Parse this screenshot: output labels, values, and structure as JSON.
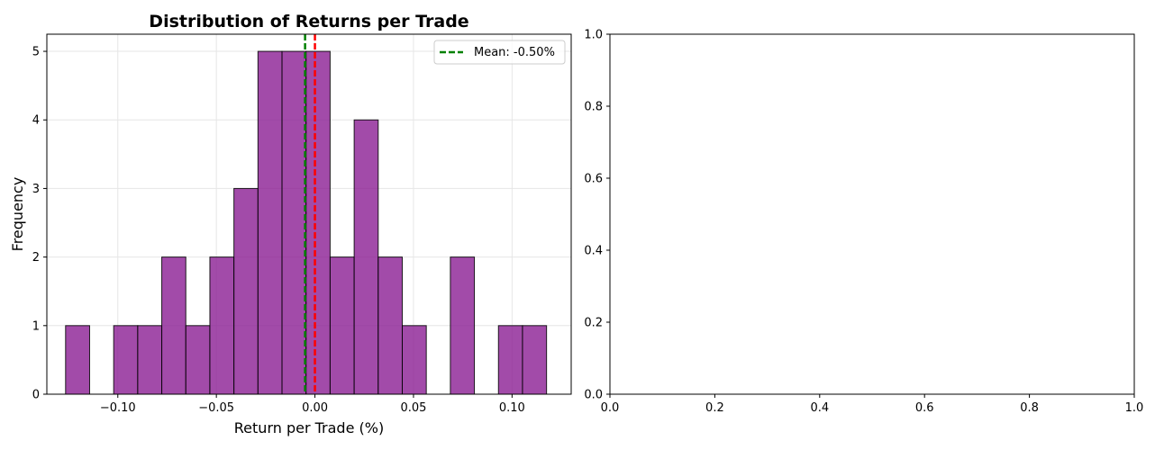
{
  "chart_data": [
    {
      "type": "bar",
      "title": "Distribution of Returns per Trade",
      "xlabel": "Return per Trade (%)",
      "ylabel": "Frequency",
      "xlim": [
        -0.136,
        0.13
      ],
      "ylim": [
        0,
        5.25
      ],
      "xticks": [
        -0.1,
        -0.05,
        0.0,
        0.05,
        0.1
      ],
      "xtick_labels": [
        "−0.10",
        "−0.05",
        "0.00",
        "0.05",
        "0.10"
      ],
      "yticks": [
        0,
        1,
        2,
        3,
        4,
        5
      ],
      "ytick_labels": [
        "0",
        "1",
        "2",
        "3",
        "4",
        "5"
      ],
      "grid": true,
      "bar_color": "#8b1e94",
      "bins": [
        {
          "x0": -0.1265,
          "x1": -0.1143,
          "count": 1
        },
        {
          "x0": -0.1143,
          "x1": -0.1021,
          "count": 0
        },
        {
          "x0": -0.1021,
          "x1": -0.0899,
          "count": 1
        },
        {
          "x0": -0.0899,
          "x1": -0.0777,
          "count": 1
        },
        {
          "x0": -0.0777,
          "x1": -0.0655,
          "count": 2
        },
        {
          "x0": -0.0655,
          "x1": -0.0533,
          "count": 1
        },
        {
          "x0": -0.0533,
          "x1": -0.0411,
          "count": 2
        },
        {
          "x0": -0.0411,
          "x1": -0.0289,
          "count": 3
        },
        {
          "x0": -0.0289,
          "x1": -0.0167,
          "count": 5
        },
        {
          "x0": -0.0167,
          "x1": -0.0045,
          "count": 5
        },
        {
          "x0": -0.0045,
          "x1": 0.0077,
          "count": 5
        },
        {
          "x0": 0.0077,
          "x1": 0.0199,
          "count": 2
        },
        {
          "x0": 0.0199,
          "x1": 0.0321,
          "count": 4
        },
        {
          "x0": 0.0321,
          "x1": 0.0443,
          "count": 2
        },
        {
          "x0": 0.0443,
          "x1": 0.0565,
          "count": 1
        },
        {
          "x0": 0.0565,
          "x1": 0.0687,
          "count": 0
        },
        {
          "x0": 0.0687,
          "x1": 0.0809,
          "count": 2
        },
        {
          "x0": 0.0809,
          "x1": 0.0931,
          "count": 0
        },
        {
          "x0": 0.0931,
          "x1": 0.1053,
          "count": 1
        },
        {
          "x0": 0.1053,
          "x1": 0.1175,
          "count": 1
        }
      ],
      "reference_lines": [
        {
          "name": "mean",
          "x": -0.005,
          "color": "#008000",
          "style": "dashed",
          "label": "Mean: -0.50%"
        },
        {
          "name": "zero",
          "x": 0.0,
          "color": "#ff0000",
          "style": "dashed",
          "label": ""
        }
      ],
      "legend": {
        "placement": "top-right",
        "entries": [
          "Mean: -0.50%"
        ]
      }
    },
    {
      "type": "empty",
      "title": "",
      "xlabel": "",
      "ylabel": "",
      "xlim": [
        0,
        1
      ],
      "ylim": [
        0,
        1
      ],
      "xticks": [
        0.0,
        0.2,
        0.4,
        0.6,
        0.8,
        1.0
      ],
      "xtick_labels": [
        "0.0",
        "0.2",
        "0.4",
        "0.6",
        "0.8",
        "1.0"
      ],
      "yticks": [
        0.0,
        0.2,
        0.4,
        0.6,
        0.8,
        1.0
      ],
      "ytick_labels": [
        "0.0",
        "0.2",
        "0.4",
        "0.6",
        "0.8",
        "1.0"
      ],
      "grid": false
    }
  ]
}
